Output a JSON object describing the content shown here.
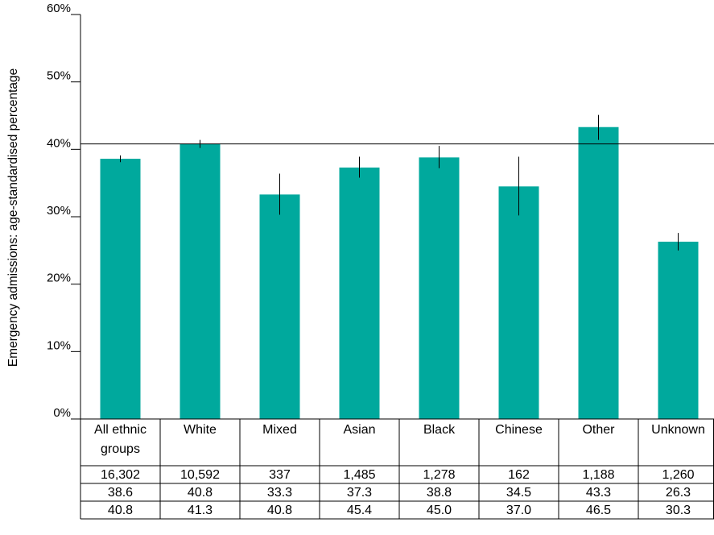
{
  "colors": {
    "bar": "#00a99d",
    "axis": "#000000",
    "grid": "#000000",
    "background": "#ffffff"
  },
  "chart_data": {
    "type": "bar",
    "title": "",
    "xlabel": "",
    "ylabel": "Emergency admissions: age-standardised percentage",
    "ylim": [
      0,
      60
    ],
    "yticks": [
      0,
      10,
      20,
      30,
      40,
      50,
      60
    ],
    "ytick_labels": [
      "0%",
      "10%",
      "20%",
      "30%",
      "40%",
      "50%",
      "60%"
    ],
    "grid": false,
    "legend": "none",
    "categories": [
      [
        "All ethnic",
        "groups"
      ],
      [
        "White"
      ],
      [
        "Mixed"
      ],
      [
        "Asian"
      ],
      [
        "Black"
      ],
      [
        "Chinese"
      ],
      [
        "Other"
      ],
      [
        "Unknown"
      ]
    ],
    "values": [
      38.6,
      40.8,
      33.3,
      37.3,
      38.8,
      34.5,
      43.3,
      26.3
    ],
    "error_low": [
      38.1,
      40.2,
      30.3,
      35.8,
      37.2,
      30.2,
      41.4,
      25.0
    ],
    "error_high": [
      39.1,
      41.4,
      36.4,
      38.9,
      40.5,
      38.9,
      45.1,
      27.6
    ],
    "reference_line": 40.8,
    "table_rows": [
      [
        "16,302",
        "10,592",
        "337",
        "1,485",
        "1,278",
        "162",
        "1,188",
        "1,260"
      ],
      [
        "38.6",
        "40.8",
        "33.3",
        "37.3",
        "38.8",
        "34.5",
        "43.3",
        "26.3"
      ],
      [
        "40.8",
        "41.3",
        "40.8",
        "45.4",
        "45.0",
        "37.0",
        "46.5",
        "30.3"
      ]
    ]
  }
}
